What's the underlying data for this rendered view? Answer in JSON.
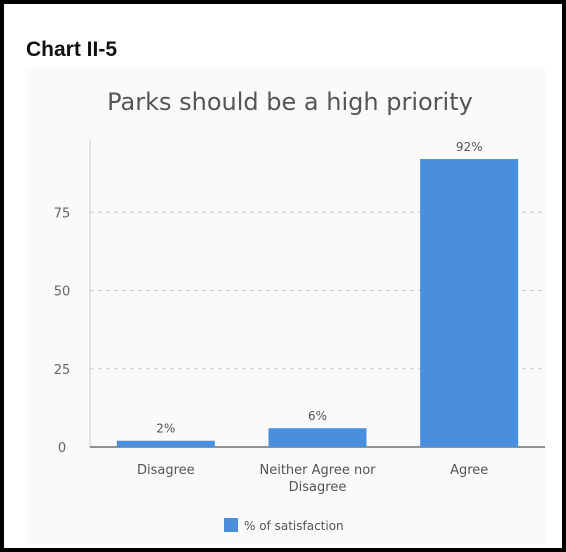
{
  "header": {
    "title": "Chart II-5"
  },
  "chart_data": {
    "type": "bar",
    "title": "Parks should be a high priority",
    "categories": [
      "Disagree",
      "Neither Agree nor Disagree",
      "Agree"
    ],
    "category_lines": [
      [
        "Disagree"
      ],
      [
        "Neither Agree nor",
        "Disagree"
      ],
      [
        "Agree"
      ]
    ],
    "series": [
      {
        "name": "% of satisfaction",
        "values": [
          2,
          6,
          92
        ],
        "labels": [
          "2%",
          "6%",
          "92%"
        ],
        "color": "#4a8fde"
      }
    ],
    "yticks": [
      0,
      25,
      50,
      75
    ],
    "ylim": [
      0,
      100
    ],
    "grid": true,
    "legend": "bottom"
  }
}
